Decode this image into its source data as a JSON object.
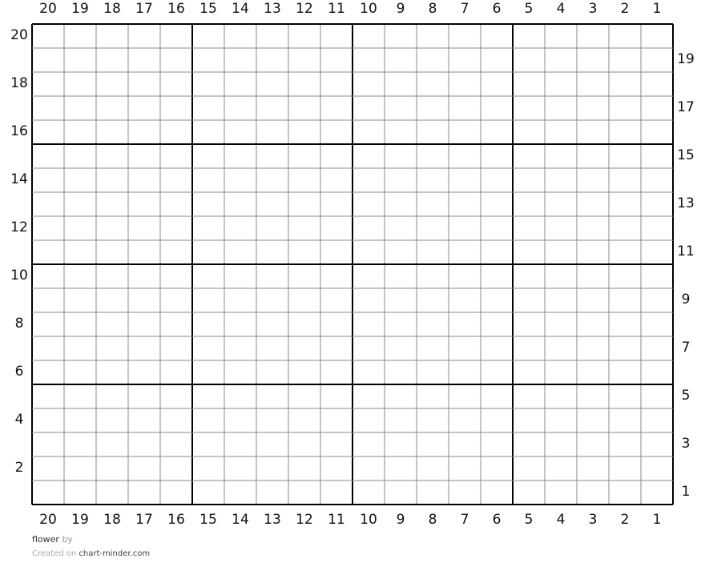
{
  "chart": {
    "columns": 20,
    "rows": 20,
    "column_labels": [
      "20",
      "19",
      "18",
      "17",
      "16",
      "15",
      "14",
      "13",
      "12",
      "11",
      "10",
      "9",
      "8",
      "7",
      "6",
      "5",
      "4",
      "3",
      "2",
      "1"
    ],
    "left_row_labels": [
      "20",
      "18",
      "16",
      "14",
      "12",
      "10",
      "8",
      "6",
      "4",
      "2"
    ],
    "right_row_labels": [
      "19",
      "17",
      "15",
      "13",
      "11",
      "9",
      "7",
      "5",
      "3",
      "1"
    ],
    "major_every": 5,
    "cell_color": "#ffffff",
    "grid_color": "#888888",
    "major_color": "#000000"
  },
  "footer": {
    "title": "flower",
    "by": "by",
    "created_on": "Created on",
    "site": "chart-minder.com"
  }
}
